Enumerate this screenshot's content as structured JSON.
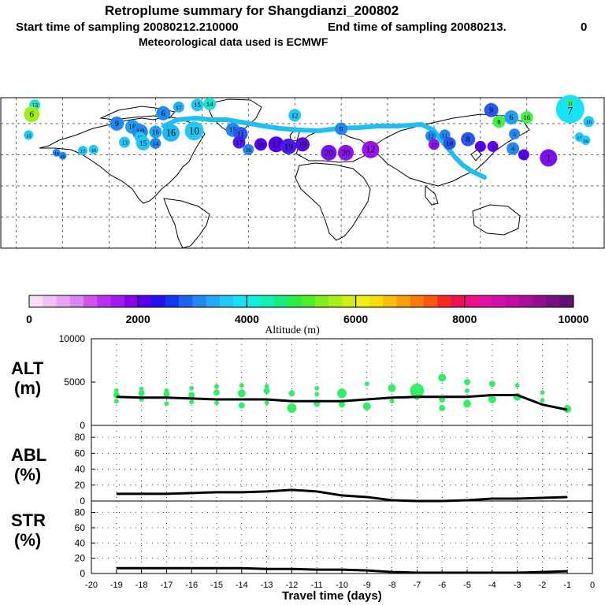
{
  "header": {
    "title": "Retroplume summary for Shangdianzi_200802",
    "line2_start": "Start time of sampling 20080212.210000",
    "line2_end": "End time of sampling 20080213.",
    "line2_tail": "0",
    "line3": "Meteorological data used is ECMWF"
  },
  "colors": {
    "track": "#1fc0f0",
    "marker_green": "#33ee66",
    "line": "#000000"
  },
  "colorbar": {
    "colors": [
      "#f7ddf7",
      "#f0c2f5",
      "#e7a4f3",
      "#dc84f0",
      "#cc55ee",
      "#b930ee",
      "#a21aee",
      "#8800ee",
      "#5500ee",
      "#2a10ee",
      "#1535ee",
      "#1e60f0",
      "#2488f2",
      "#25a8f5",
      "#20c8f8",
      "#18e2f5",
      "#12f0dd",
      "#14f0b0",
      "#18ee80",
      "#28ee48",
      "#50ee28",
      "#80ee1e",
      "#aaf018",
      "#d0f014",
      "#f0f010",
      "#f7dd0a",
      "#f8c00a",
      "#f8a00a",
      "#f87c0a",
      "#f85810",
      "#f82820",
      "#f01050",
      "#f01080",
      "#e010a0",
      "#d010a8",
      "#c010a0",
      "#a81098",
      "#901090",
      "#781080",
      "#601070"
    ],
    "ticks": [
      "0",
      "2000",
      "4000",
      "6000",
      "8000",
      "10000"
    ],
    "label": "Altitude (m)"
  },
  "chart_data": [
    {
      "type": "line",
      "panel": "ALT",
      "ylabel": "ALT\n(m)",
      "ylabel_line1": "ALT",
      "ylabel_line2": "(m)",
      "ylim": [
        0,
        10000
      ],
      "yticks": [
        "0",
        "5000",
        "10000"
      ],
      "x": [
        -19,
        -18,
        -17,
        -16,
        -15,
        -14,
        -13,
        -12,
        -11,
        -10,
        -9,
        -8,
        -7,
        -6,
        -5,
        -4,
        -3,
        -2,
        -1
      ],
      "values": [
        3300,
        3200,
        3200,
        3100,
        3000,
        3000,
        3000,
        2800,
        2800,
        2800,
        3000,
        3200,
        3300,
        3300,
        3300,
        3500,
        3500,
        2400,
        1800
      ],
      "markers": [
        {
          "x": -19,
          "y": 3500,
          "r": 4
        },
        {
          "x": -19,
          "y": 4000,
          "r": 3
        },
        {
          "x": -19,
          "y": 2800,
          "r": 3
        },
        {
          "x": -18,
          "y": 3700,
          "r": 4
        },
        {
          "x": -18,
          "y": 3000,
          "r": 3
        },
        {
          "x": -18,
          "y": 4200,
          "r": 3
        },
        {
          "x": -17,
          "y": 3600,
          "r": 4
        },
        {
          "x": -17,
          "y": 2500,
          "r": 3
        },
        {
          "x": -17,
          "y": 4000,
          "r": 3
        },
        {
          "x": -16,
          "y": 3500,
          "r": 4
        },
        {
          "x": -16,
          "y": 4300,
          "r": 3
        },
        {
          "x": -16,
          "y": 2700,
          "r": 3
        },
        {
          "x": -15,
          "y": 3800,
          "r": 4
        },
        {
          "x": -15,
          "y": 4500,
          "r": 3
        },
        {
          "x": -15,
          "y": 2600,
          "r": 3
        },
        {
          "x": -14,
          "y": 3700,
          "r": 5
        },
        {
          "x": -14,
          "y": 4600,
          "r": 3
        },
        {
          "x": -14,
          "y": 2300,
          "r": 4
        },
        {
          "x": -13,
          "y": 4000,
          "r": 4
        },
        {
          "x": -13,
          "y": 2600,
          "r": 3
        },
        {
          "x": -13,
          "y": 4500,
          "r": 3
        },
        {
          "x": -12,
          "y": 3700,
          "r": 4
        },
        {
          "x": -12,
          "y": 2000,
          "r": 6
        },
        {
          "x": -11,
          "y": 3600,
          "r": 3
        },
        {
          "x": -11,
          "y": 2500,
          "r": 4
        },
        {
          "x": -11,
          "y": 4300,
          "r": 3
        },
        {
          "x": -10,
          "y": 3700,
          "r": 6
        },
        {
          "x": -10,
          "y": 2400,
          "r": 4
        },
        {
          "x": -9,
          "y": 4800,
          "r": 3
        },
        {
          "x": -9,
          "y": 2200,
          "r": 5
        },
        {
          "x": -8,
          "y": 4300,
          "r": 5
        },
        {
          "x": -8,
          "y": 2800,
          "r": 3
        },
        {
          "x": -7,
          "y": 4000,
          "r": 9
        },
        {
          "x": -7,
          "y": 3300,
          "r": 4
        },
        {
          "x": -6,
          "y": 5500,
          "r": 5
        },
        {
          "x": -6,
          "y": 3000,
          "r": 4
        },
        {
          "x": -6,
          "y": 2000,
          "r": 4
        },
        {
          "x": -5,
          "y": 5000,
          "r": 4
        },
        {
          "x": -5,
          "y": 4000,
          "r": 3
        },
        {
          "x": -5,
          "y": 2500,
          "r": 5
        },
        {
          "x": -4,
          "y": 4800,
          "r": 4
        },
        {
          "x": -4,
          "y": 3000,
          "r": 5
        },
        {
          "x": -3,
          "y": 4600,
          "r": 3
        },
        {
          "x": -3,
          "y": 3300,
          "r": 5
        },
        {
          "x": -2,
          "y": 3800,
          "r": 3
        },
        {
          "x": -2,
          "y": 2900,
          "r": 3
        },
        {
          "x": -1,
          "y": 1900,
          "r": 5
        }
      ]
    },
    {
      "type": "line",
      "panel": "ABL",
      "ylabel": "ABL\n(%)",
      "ylabel_line1": "ABL",
      "ylabel_line2": "(%)",
      "ylim": [
        0,
        95
      ],
      "yticks": [
        "0",
        "20",
        "40",
        "60",
        "80"
      ],
      "x": [
        -19,
        -18,
        -17,
        -16,
        -15,
        -14,
        -13,
        -12,
        -11,
        -10,
        -9,
        -8,
        -7,
        -6,
        -5,
        -4,
        -3,
        -2,
        -1
      ],
      "values": [
        9,
        9,
        9,
        10,
        11,
        11,
        12,
        14,
        12,
        7,
        5,
        1,
        0,
        0,
        1,
        3,
        3,
        4,
        5
      ]
    },
    {
      "type": "line",
      "panel": "STR",
      "ylabel": "STR\n(%)",
      "ylabel_line1": "STR",
      "ylabel_line2": "(%)",
      "ylim": [
        0,
        95
      ],
      "yticks": [
        "0",
        "20",
        "40",
        "60",
        "80"
      ],
      "x": [
        -19,
        -18,
        -17,
        -16,
        -15,
        -14,
        -13,
        -12,
        -11,
        -10,
        -9,
        -8,
        -7,
        -6,
        -5,
        -4,
        -3,
        -2,
        -1
      ],
      "values": [
        7,
        7,
        7,
        7,
        7,
        7,
        6,
        6,
        5,
        5,
        4,
        2,
        1,
        1,
        1,
        1,
        1,
        2,
        3
      ],
      "xlim": [
        -20,
        0
      ],
      "xticks": [
        "-20",
        "-19",
        "-18",
        "-17",
        "-16",
        "-15",
        "-14",
        "-13",
        "-12",
        "-11",
        "-10",
        "-9",
        "-8",
        "-7",
        "-6",
        "-5",
        "-4",
        "-3",
        "-2",
        "-1",
        "0"
      ],
      "xlabel": "Travel time (days)"
    }
  ],
  "map": {
    "markers": [
      {
        "lon": -168,
        "lat": 78,
        "r": 7,
        "c": "#1ee0d0",
        "n": "13"
      },
      {
        "lon": -63,
        "lat": 78,
        "r": 8,
        "c": "#1ec8f0",
        "n": "15"
      },
      {
        "lon": -55,
        "lat": 79,
        "r": 8,
        "c": "#1ee0d0",
        "n": "14"
      },
      {
        "lon": -75,
        "lat": 76,
        "r": 7,
        "c": "#20b0f0",
        "n": "17"
      },
      {
        "lon": -85,
        "lat": 70,
        "r": 9,
        "c": "#2188f2",
        "n": "6"
      },
      {
        "lon": 0,
        "lat": 68,
        "r": 8,
        "c": "#20c8f8",
        "n": "12"
      },
      {
        "lon": -115,
        "lat": 60,
        "r": 9,
        "c": "#2188f2",
        "n": "9"
      },
      {
        "lon": -105,
        "lat": 57,
        "r": 9,
        "c": "#20a0f2",
        "n": "18"
      },
      {
        "lon": -100,
        "lat": 52,
        "r": 10,
        "c": "#2188f2",
        "n": "19"
      },
      {
        "lon": -90,
        "lat": 52,
        "r": 8,
        "c": "#20a0f2",
        "n": "16"
      },
      {
        "lon": -80,
        "lat": 51,
        "r": 11,
        "c": "#20b8f4",
        "n": "16"
      },
      {
        "lon": -65,
        "lat": 53,
        "r": 12,
        "c": "#22c8f6",
        "n": "10"
      },
      {
        "lon": -40,
        "lat": 54,
        "r": 9,
        "c": "#2188f2",
        "n": "15"
      },
      {
        "lon": -35,
        "lat": 50,
        "r": 9,
        "c": "#2a55ee",
        "n": "11"
      },
      {
        "lon": -36,
        "lat": 42,
        "r": 8,
        "c": "#4b1bee",
        "n": "17"
      },
      {
        "lon": -22,
        "lat": 40,
        "r": 8,
        "c": "#5500ee",
        "n": "19"
      },
      {
        "lon": -12,
        "lat": 40,
        "r": 10,
        "c": "#5500ee",
        "n": "17"
      },
      {
        "lon": -4,
        "lat": 38,
        "r": 10,
        "c": "#4b1bee",
        "n": "19"
      },
      {
        "lon": 5,
        "lat": 40,
        "r": 9,
        "c": "#5a0ae0",
        "n": "19"
      },
      {
        "lon": -30,
        "lat": 35,
        "r": 7,
        "c": "#2188f2",
        "n": "16"
      },
      {
        "lon": 22,
        "lat": 32,
        "r": 10,
        "c": "#7a10f0",
        "n": "20"
      },
      {
        "lon": 33,
        "lat": 32,
        "r": 10,
        "c": "#8f10f0",
        "n": "20"
      },
      {
        "lon": 49,
        "lat": 35,
        "r": 11,
        "c": "#9a10f0",
        "n": "12"
      },
      {
        "lon": 30,
        "lat": 55,
        "r": 8,
        "c": "#2188f2",
        "n": "9"
      },
      {
        "lon": 88,
        "lat": 48,
        "r": 7,
        "c": "#2188f2",
        "n": "12"
      },
      {
        "lon": 97,
        "lat": 49,
        "r": 7,
        "c": "#2188f2",
        "n": "11"
      },
      {
        "lon": 112,
        "lat": 45,
        "r": 9,
        "c": "#2a55ee",
        "n": "8"
      },
      {
        "lon": 90,
        "lat": 40,
        "r": 7,
        "c": "#8f10f0",
        "n": "12"
      },
      {
        "lon": 100,
        "lat": 41,
        "r": 8,
        "c": "#2a55ee",
        "n": "10"
      },
      {
        "lon": 127,
        "lat": 73,
        "r": 9,
        "c": "#2a55ee",
        "n": "9"
      },
      {
        "lon": 140,
        "lat": 66,
        "r": 9,
        "c": "#20a0f2",
        "n": "6"
      },
      {
        "lon": 132,
        "lat": 62,
        "r": 8,
        "c": "#44ee44",
        "n": "8"
      },
      {
        "lon": 142,
        "lat": 50,
        "r": 7,
        "c": "#2188f2",
        "n": "5"
      },
      {
        "lon": 120,
        "lat": 38,
        "r": 7,
        "c": "#5500ee",
        "n": "5"
      },
      {
        "lon": 128,
        "lat": 38,
        "r": 7,
        "c": "#6000ee",
        "n": "3"
      },
      {
        "lon": 141,
        "lat": 36,
        "r": 8,
        "c": "#2188f2",
        "n": "4"
      },
      {
        "lon": 148,
        "lat": 30,
        "r": 7,
        "c": "#5500ee",
        "n": "2"
      },
      {
        "lon": 164,
        "lat": 27,
        "r": 11,
        "c": "#7a10f0",
        "n": "1"
      },
      {
        "lon": 150,
        "lat": 66,
        "r": 8,
        "c": "#44ee44",
        "n": "16"
      },
      {
        "lon": 178,
        "lat": 74,
        "r": 18,
        "c": "#18e2f5",
        "n": "7"
      },
      {
        "lon": -170,
        "lat": 69,
        "r": 10,
        "c": "#a0ee18",
        "n": "6"
      },
      {
        "lon": -100,
        "lat": 47,
        "r": 7,
        "c": "#20c8f8",
        "n": "12"
      },
      {
        "lon": -110,
        "lat": 42,
        "r": 7,
        "c": "#20c8f8",
        "n": "13"
      },
      {
        "lon": -98,
        "lat": 41,
        "r": 9,
        "c": "#20c8f8",
        "n": "15"
      },
      {
        "lon": -90,
        "lat": 41,
        "r": 7,
        "c": "#2188f2",
        "n": "14"
      },
      {
        "lon": -130,
        "lat": 35,
        "r": 6,
        "c": "#20c8f8",
        "n": "16"
      },
      {
        "lon": -137,
        "lat": 34,
        "r": 6,
        "c": "#20c8f8",
        "n": "17"
      },
      {
        "lon": -154,
        "lat": 32,
        "r": 5,
        "c": "#2188f2",
        "n": "18"
      },
      {
        "lon": -150,
        "lat": 29,
        "r": 5,
        "c": "#2188f2",
        "n": "19"
      },
      {
        "lon": -172,
        "lat": 49,
        "r": 6,
        "c": "#20c8f8",
        "n": "15"
      },
      {
        "lon": 190,
        "lat": 62,
        "r": 7,
        "c": "#20c8f8",
        "n": "16"
      },
      {
        "lon": 184,
        "lat": 47,
        "r": 6,
        "c": "#20c8f8",
        "n": "15"
      },
      {
        "lon": 188,
        "lat": 44,
        "r": 6,
        "c": "#20c8f8",
        "n": "16"
      },
      {
        "lon": 178,
        "lat": 80,
        "r": 4,
        "c": "#44ee44",
        "n": "11"
      }
    ]
  }
}
